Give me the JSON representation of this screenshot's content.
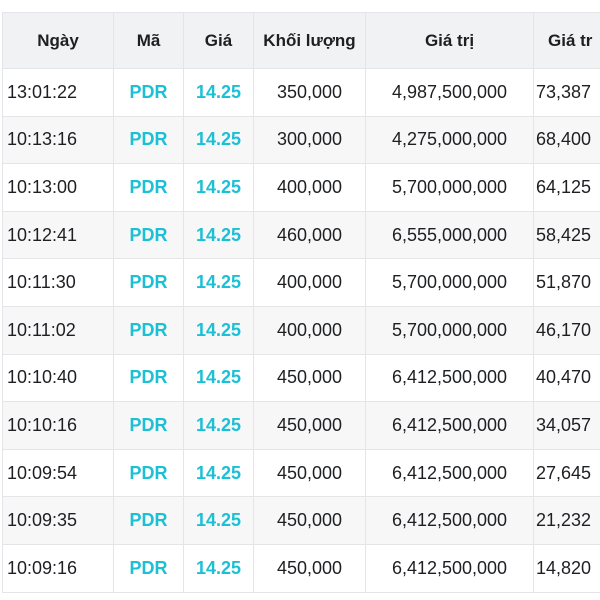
{
  "headers": [
    "Ngày",
    "Mã",
    "Giá",
    "Khối lượng",
    "Giá trị",
    "Giá tr"
  ],
  "accent_color": "#1cc0d4",
  "rows": [
    {
      "time": "13:01:22",
      "code": "PDR",
      "price": "14.25",
      "volume": "350,000",
      "value": "4,987,500,000",
      "cum": "73,387"
    },
    {
      "time": "10:13:16",
      "code": "PDR",
      "price": "14.25",
      "volume": "300,000",
      "value": "4,275,000,000",
      "cum": "68,400"
    },
    {
      "time": "10:13:00",
      "code": "PDR",
      "price": "14.25",
      "volume": "400,000",
      "value": "5,700,000,000",
      "cum": "64,125"
    },
    {
      "time": "10:12:41",
      "code": "PDR",
      "price": "14.25",
      "volume": "460,000",
      "value": "6,555,000,000",
      "cum": "58,425"
    },
    {
      "time": "10:11:30",
      "code": "PDR",
      "price": "14.25",
      "volume": "400,000",
      "value": "5,700,000,000",
      "cum": "51,870"
    },
    {
      "time": "10:11:02",
      "code": "PDR",
      "price": "14.25",
      "volume": "400,000",
      "value": "5,700,000,000",
      "cum": "46,170"
    },
    {
      "time": "10:10:40",
      "code": "PDR",
      "price": "14.25",
      "volume": "450,000",
      "value": "6,412,500,000",
      "cum": "40,470"
    },
    {
      "time": "10:10:16",
      "code": "PDR",
      "price": "14.25",
      "volume": "450,000",
      "value": "6,412,500,000",
      "cum": "34,057"
    },
    {
      "time": "10:09:54",
      "code": "PDR",
      "price": "14.25",
      "volume": "450,000",
      "value": "6,412,500,000",
      "cum": "27,645"
    },
    {
      "time": "10:09:35",
      "code": "PDR",
      "price": "14.25",
      "volume": "450,000",
      "value": "6,412,500,000",
      "cum": "21,232"
    },
    {
      "time": "10:09:16",
      "code": "PDR",
      "price": "14.25",
      "volume": "450,000",
      "value": "6,412,500,000",
      "cum": "14,820"
    }
  ]
}
